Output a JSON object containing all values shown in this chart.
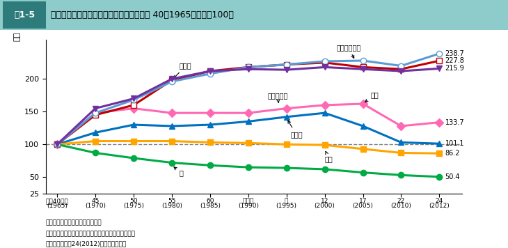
{
  "title": "図1-5　１人当たりの品目別消費量の推移（昭和40（1965）年度＝100）",
  "ylabel": "指数",
  "x_positions": [
    0,
    1,
    2,
    3,
    4,
    5,
    6,
    7,
    8,
    9,
    10
  ],
  "x_labels_line1": [
    "昭和40年度",
    "45",
    "50",
    "55",
    "60",
    "平成２",
    "７",
    "12",
    "17",
    "22",
    "24"
  ],
  "x_labels_line2": [
    "(1965)",
    "(1970)",
    "(1975)",
    "(1980)",
    "(1985)",
    "(1990)",
    "(1995)",
    "(2000)",
    "(2005)",
    "(2010)",
    "(2012)"
  ],
  "ylim": [
    25,
    260
  ],
  "yticks": [
    25,
    50,
    100,
    150,
    200
  ],
  "series": [
    {
      "name": "牛乳・乳製品",
      "color": "#5B9BD5",
      "linecolor": "#5B9BD5",
      "marker": "o",
      "markerfacecolor": "white",
      "markeredgecolor": "#5B9BD5",
      "linewidth": 2.2,
      "values": [
        100,
        148,
        168,
        196,
        208,
        218,
        222,
        227,
        228,
        220,
        238.7
      ],
      "end_label": "238.7",
      "zorder": 5
    },
    {
      "name": "油脂類",
      "color": "#C00000",
      "linecolor": "#C00000",
      "marker": "s",
      "markerfacecolor": "white",
      "markeredgecolor": "#C00000",
      "linewidth": 2.2,
      "values": [
        100,
        145,
        160,
        198,
        212,
        218,
        222,
        225,
        218,
        215,
        227.8
      ],
      "end_label": "227.8",
      "zorder": 4
    },
    {
      "name": "肉類・鶏卵",
      "color": "#7030A0",
      "linecolor": "#7030A0",
      "marker": "v",
      "markerfacecolor": "#7030A0",
      "markeredgecolor": "#7030A0",
      "linewidth": 2.2,
      "values": [
        100,
        155,
        170,
        200,
        212,
        215,
        214,
        218,
        215,
        212,
        215.9
      ],
      "end_label": "215.9",
      "zorder": 6
    },
    {
      "name": "果実",
      "color": "#FF69B4",
      "linecolor": "#FF69B4",
      "marker": "D",
      "markerfacecolor": "#FF69B4",
      "markeredgecolor": "#FF69B4",
      "linewidth": 2.2,
      "values": [
        100,
        148,
        155,
        148,
        148,
        148,
        155,
        160,
        162,
        128,
        133.7
      ],
      "end_label": "133.7",
      "zorder": 3
    },
    {
      "name": "魚介類",
      "color": "#0070C0",
      "linecolor": "#0070C0",
      "marker": "^",
      "markerfacecolor": "#0070C0",
      "markeredgecolor": "#0070C0",
      "linewidth": 2.2,
      "values": [
        100,
        118,
        130,
        128,
        130,
        135,
        142,
        148,
        128,
        103,
        101.1
      ],
      "end_label": "101.1",
      "zorder": 3
    },
    {
      "name": "野菜",
      "color": "#FFA500",
      "linecolor": "#FFA500",
      "marker": "s",
      "markerfacecolor": "#FFA500",
      "markeredgecolor": "#FFA500",
      "linewidth": 2.2,
      "values": [
        100,
        105,
        105,
        105,
        103,
        102,
        100,
        99,
        93,
        87,
        86.2
      ],
      "end_label": "86.2",
      "zorder": 3
    },
    {
      "name": "米",
      "color": "#00AA44",
      "linecolor": "#00AA44",
      "marker": "o",
      "markerfacecolor": "#00AA44",
      "markeredgecolor": "#00AA44",
      "linewidth": 2.2,
      "values": [
        100,
        87,
        79,
        72,
        68,
        65,
        64,
        62,
        57,
        53,
        50.4
      ],
      "end_label": "50.4",
      "zorder": 3
    }
  ],
  "note_line1": "資料：農林水産省「食料需給表」",
  "note_line2": "　注：１）国民１人・１年当たりの供給純食料の値。",
  "note_line3": "　　　２）平成24(2012)年度は概算値。",
  "header_bg": "#7FBFBF",
  "header_text_color": "#FFFFFF"
}
